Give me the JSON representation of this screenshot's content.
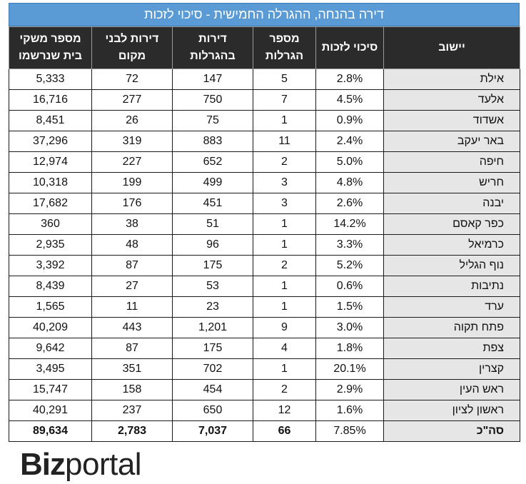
{
  "title": "דירה בהנחה, ההגרלה החמישית - סיכוי לזכות",
  "columns": [
    {
      "key": "city",
      "label": "יישוב"
    },
    {
      "key": "chance",
      "label": "סיכוי לזכות"
    },
    {
      "key": "lotteries",
      "label": "מספר הגרלות"
    },
    {
      "key": "apartments",
      "label": "דירות בהגרלות"
    },
    {
      "key": "locals",
      "label": "דירות לבני מקום"
    },
    {
      "key": "households",
      "label": "מספר משקי בית שנרשמו"
    }
  ],
  "rows": [
    {
      "city": "אילת",
      "chance": "2.8%",
      "lotteries": "5",
      "apartments": "147",
      "locals": "72",
      "households": "5,333"
    },
    {
      "city": "אלעד",
      "chance": "4.5%",
      "lotteries": "7",
      "apartments": "750",
      "locals": "277",
      "households": "16,716"
    },
    {
      "city": "אשדוד",
      "chance": "0.9%",
      "lotteries": "1",
      "apartments": "75",
      "locals": "26",
      "households": "8,451"
    },
    {
      "city": "באר יעקב",
      "chance": "2.4%",
      "lotteries": "11",
      "apartments": "883",
      "locals": "319",
      "households": "37,296"
    },
    {
      "city": "חיפה",
      "chance": "5.0%",
      "lotteries": "2",
      "apartments": "652",
      "locals": "227",
      "households": "12,974"
    },
    {
      "city": "חריש",
      "chance": "4.8%",
      "lotteries": "3",
      "apartments": "499",
      "locals": "199",
      "households": "10,318"
    },
    {
      "city": "יבנה",
      "chance": "2.6%",
      "lotteries": "3",
      "apartments": "451",
      "locals": "176",
      "households": "17,682"
    },
    {
      "city": "כפר קאסם",
      "chance": "14.2%",
      "lotteries": "1",
      "apartments": "51",
      "locals": "38",
      "households": "360"
    },
    {
      "city": "כרמיאל",
      "chance": "3.3%",
      "lotteries": "1",
      "apartments": "96",
      "locals": "48",
      "households": "2,935"
    },
    {
      "city": "נוף הגליל",
      "chance": "5.2%",
      "lotteries": "2",
      "apartments": "175",
      "locals": "87",
      "households": "3,392"
    },
    {
      "city": "נתיבות",
      "chance": "0.6%",
      "lotteries": "1",
      "apartments": "53",
      "locals": "27",
      "households": "8,439"
    },
    {
      "city": "ערד",
      "chance": "1.5%",
      "lotteries": "1",
      "apartments": "23",
      "locals": "11",
      "households": "1,565"
    },
    {
      "city": "פתח תקוה",
      "chance": "3.0%",
      "lotteries": "9",
      "apartments": "1,201",
      "locals": "443",
      "households": "40,209"
    },
    {
      "city": "צפת",
      "chance": "1.8%",
      "lotteries": "4",
      "apartments": "175",
      "locals": "87",
      "households": "9,642"
    },
    {
      "city": "קצרין",
      "chance": "20.1%",
      "lotteries": "1",
      "apartments": "702",
      "locals": "351",
      "households": "3,495"
    },
    {
      "city": "ראש העין",
      "chance": "2.9%",
      "lotteries": "2",
      "apartments": "454",
      "locals": "158",
      "households": "15,747"
    },
    {
      "city": "ראשון לציון",
      "chance": "1.6%",
      "lotteries": "12",
      "apartments": "650",
      "locals": "237",
      "households": "40,291"
    }
  ],
  "total": {
    "city": "סה\"כ",
    "chance": "7.85%",
    "lotteries": "66",
    "apartments": "7,037",
    "locals": "2,783",
    "households": "89,634"
  },
  "logo": {
    "bold": "Biz",
    "regular": "portal"
  },
  "colors": {
    "title_bg": "#5b9bd5",
    "header_bg": "#2b2b2b",
    "city_bg": "#e6e6e6"
  }
}
